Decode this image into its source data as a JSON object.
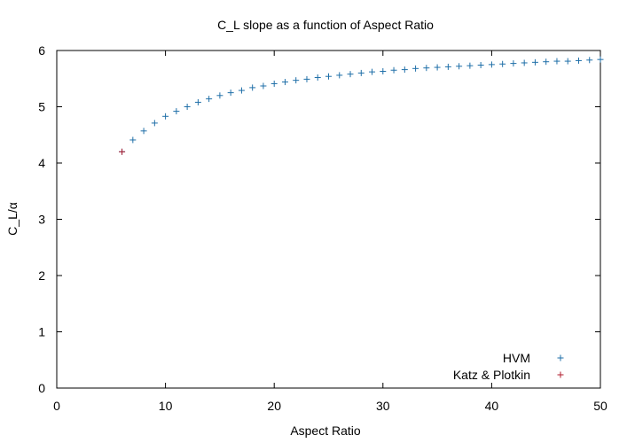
{
  "chart_data": {
    "type": "scatter",
    "title": "C_L slope as a function of Aspect Ratio",
    "xlabel": "Aspect Ratio",
    "ylabel": "C_L/α",
    "xlim": [
      0,
      50
    ],
    "ylim": [
      0,
      6
    ],
    "xticks": [
      "0",
      "10",
      "20",
      "30",
      "40",
      "50"
    ],
    "yticks": [
      "0",
      "1",
      "2",
      "3",
      "4",
      "5",
      "6"
    ],
    "grid": false,
    "legend_position": "bottom-right",
    "series": [
      {
        "name": "HVM",
        "marker": "+",
        "color": "#1f6fa8",
        "x": [
          6,
          7,
          8,
          9,
          10,
          11,
          12,
          13,
          14,
          15,
          16,
          17,
          18,
          19,
          20,
          21,
          22,
          23,
          24,
          25,
          26,
          27,
          28,
          29,
          30,
          31,
          32,
          33,
          34,
          35,
          36,
          37,
          38,
          39,
          40,
          41,
          42,
          43,
          44,
          45,
          46,
          47,
          48,
          49,
          50
        ],
        "y": [
          4.2,
          4.41,
          4.57,
          4.71,
          4.83,
          4.92,
          5.0,
          5.08,
          5.14,
          5.2,
          5.25,
          5.29,
          5.34,
          5.37,
          5.41,
          5.44,
          5.47,
          5.49,
          5.52,
          5.54,
          5.56,
          5.58,
          5.6,
          5.62,
          5.63,
          5.65,
          5.66,
          5.68,
          5.69,
          5.7,
          5.71,
          5.72,
          5.73,
          5.74,
          5.75,
          5.76,
          5.77,
          5.78,
          5.79,
          5.8,
          5.81,
          5.81,
          5.82,
          5.83,
          5.84
        ]
      },
      {
        "name": "Katz & Plotkin",
        "marker": "+",
        "color": "#b01c2e",
        "x": [
          6
        ],
        "y": [
          4.2
        ]
      }
    ]
  }
}
